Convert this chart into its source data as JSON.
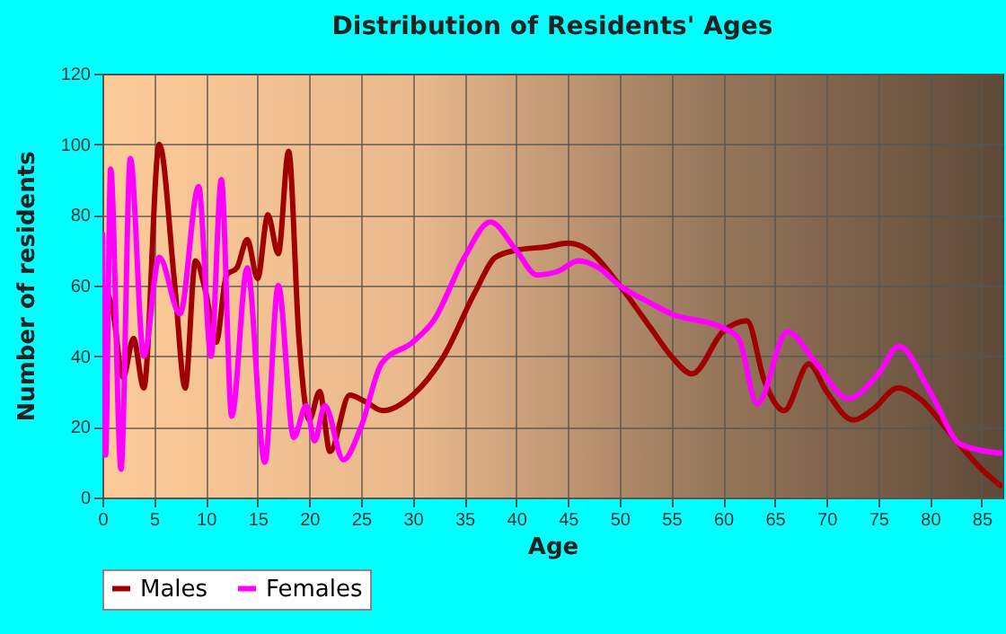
{
  "chart_data": {
    "type": "line",
    "title": "Distribution of Residents' Ages",
    "xlabel": "Age",
    "ylabel": "Number of residents",
    "xlim": [
      0,
      87
    ],
    "xticks": [
      0,
      5,
      10,
      15,
      20,
      25,
      30,
      35,
      40,
      45,
      50,
      55,
      60,
      65,
      70,
      75,
      80,
      85
    ],
    "ylim": [
      0,
      120
    ],
    "yticks": [
      0,
      20,
      40,
      60,
      80,
      100,
      120
    ],
    "grid": true,
    "legend": "bottom",
    "marker": "none",
    "line_style": "solid",
    "series": [
      {
        "name": "Males",
        "color": "#a00000",
        "x": [
          0,
          1,
          2,
          3,
          4,
          5.5,
          7,
          8,
          9,
          10,
          11,
          12,
          13,
          14,
          15,
          16,
          17,
          18,
          19,
          20,
          21,
          22,
          23.9,
          25.5,
          27.1,
          30,
          33,
          36,
          38,
          40,
          43,
          45,
          47,
          50,
          53,
          55,
          57,
          60,
          62.3,
          64,
          65.9,
          68.3,
          70,
          72.6,
          74.5,
          76.9,
          79,
          82,
          85,
          87
        ],
        "values": [
          60,
          53,
          34,
          45,
          31,
          100,
          60,
          31,
          67,
          58,
          44,
          63,
          65,
          73,
          62,
          80,
          69,
          98,
          45,
          22,
          30,
          13,
          29,
          27,
          24.6,
          29,
          40,
          58,
          68,
          70,
          71,
          72,
          70,
          60,
          48,
          40,
          35,
          47,
          50,
          33,
          24.6,
          37.8,
          30,
          21.9,
          25,
          31,
          28,
          18,
          8,
          3
        ]
      },
      {
        "name": "Females",
        "color": "#ff00ff",
        "x": [
          0,
          0.3,
          0.8,
          1.8,
          2.7,
          4,
          5.5,
          7.5,
          9.3,
          10.5,
          11.5,
          12.5,
          14,
          15.7,
          17,
          18.5,
          19.7,
          20.5,
          21.5,
          23.3,
          25,
          27,
          30,
          32,
          35,
          37.5,
          40,
          42,
          44,
          46,
          48,
          50,
          53,
          55,
          60,
          61.5,
          63.3,
          66.2,
          69,
          72.1,
          75,
          77,
          80,
          83,
          87
        ],
        "values": [
          75,
          12,
          93,
          8,
          96,
          40,
          68,
          52,
          88,
          40,
          90,
          23,
          65,
          10,
          60,
          17,
          26,
          16,
          26,
          10.7,
          20,
          38,
          44,
          50,
          68,
          78,
          70,
          63,
          64,
          67,
          65,
          60,
          55,
          52,
          48,
          45,
          26.5,
          47,
          38,
          28,
          35,
          42.8,
          30,
          15,
          12.5
        ]
      }
    ]
  }
}
